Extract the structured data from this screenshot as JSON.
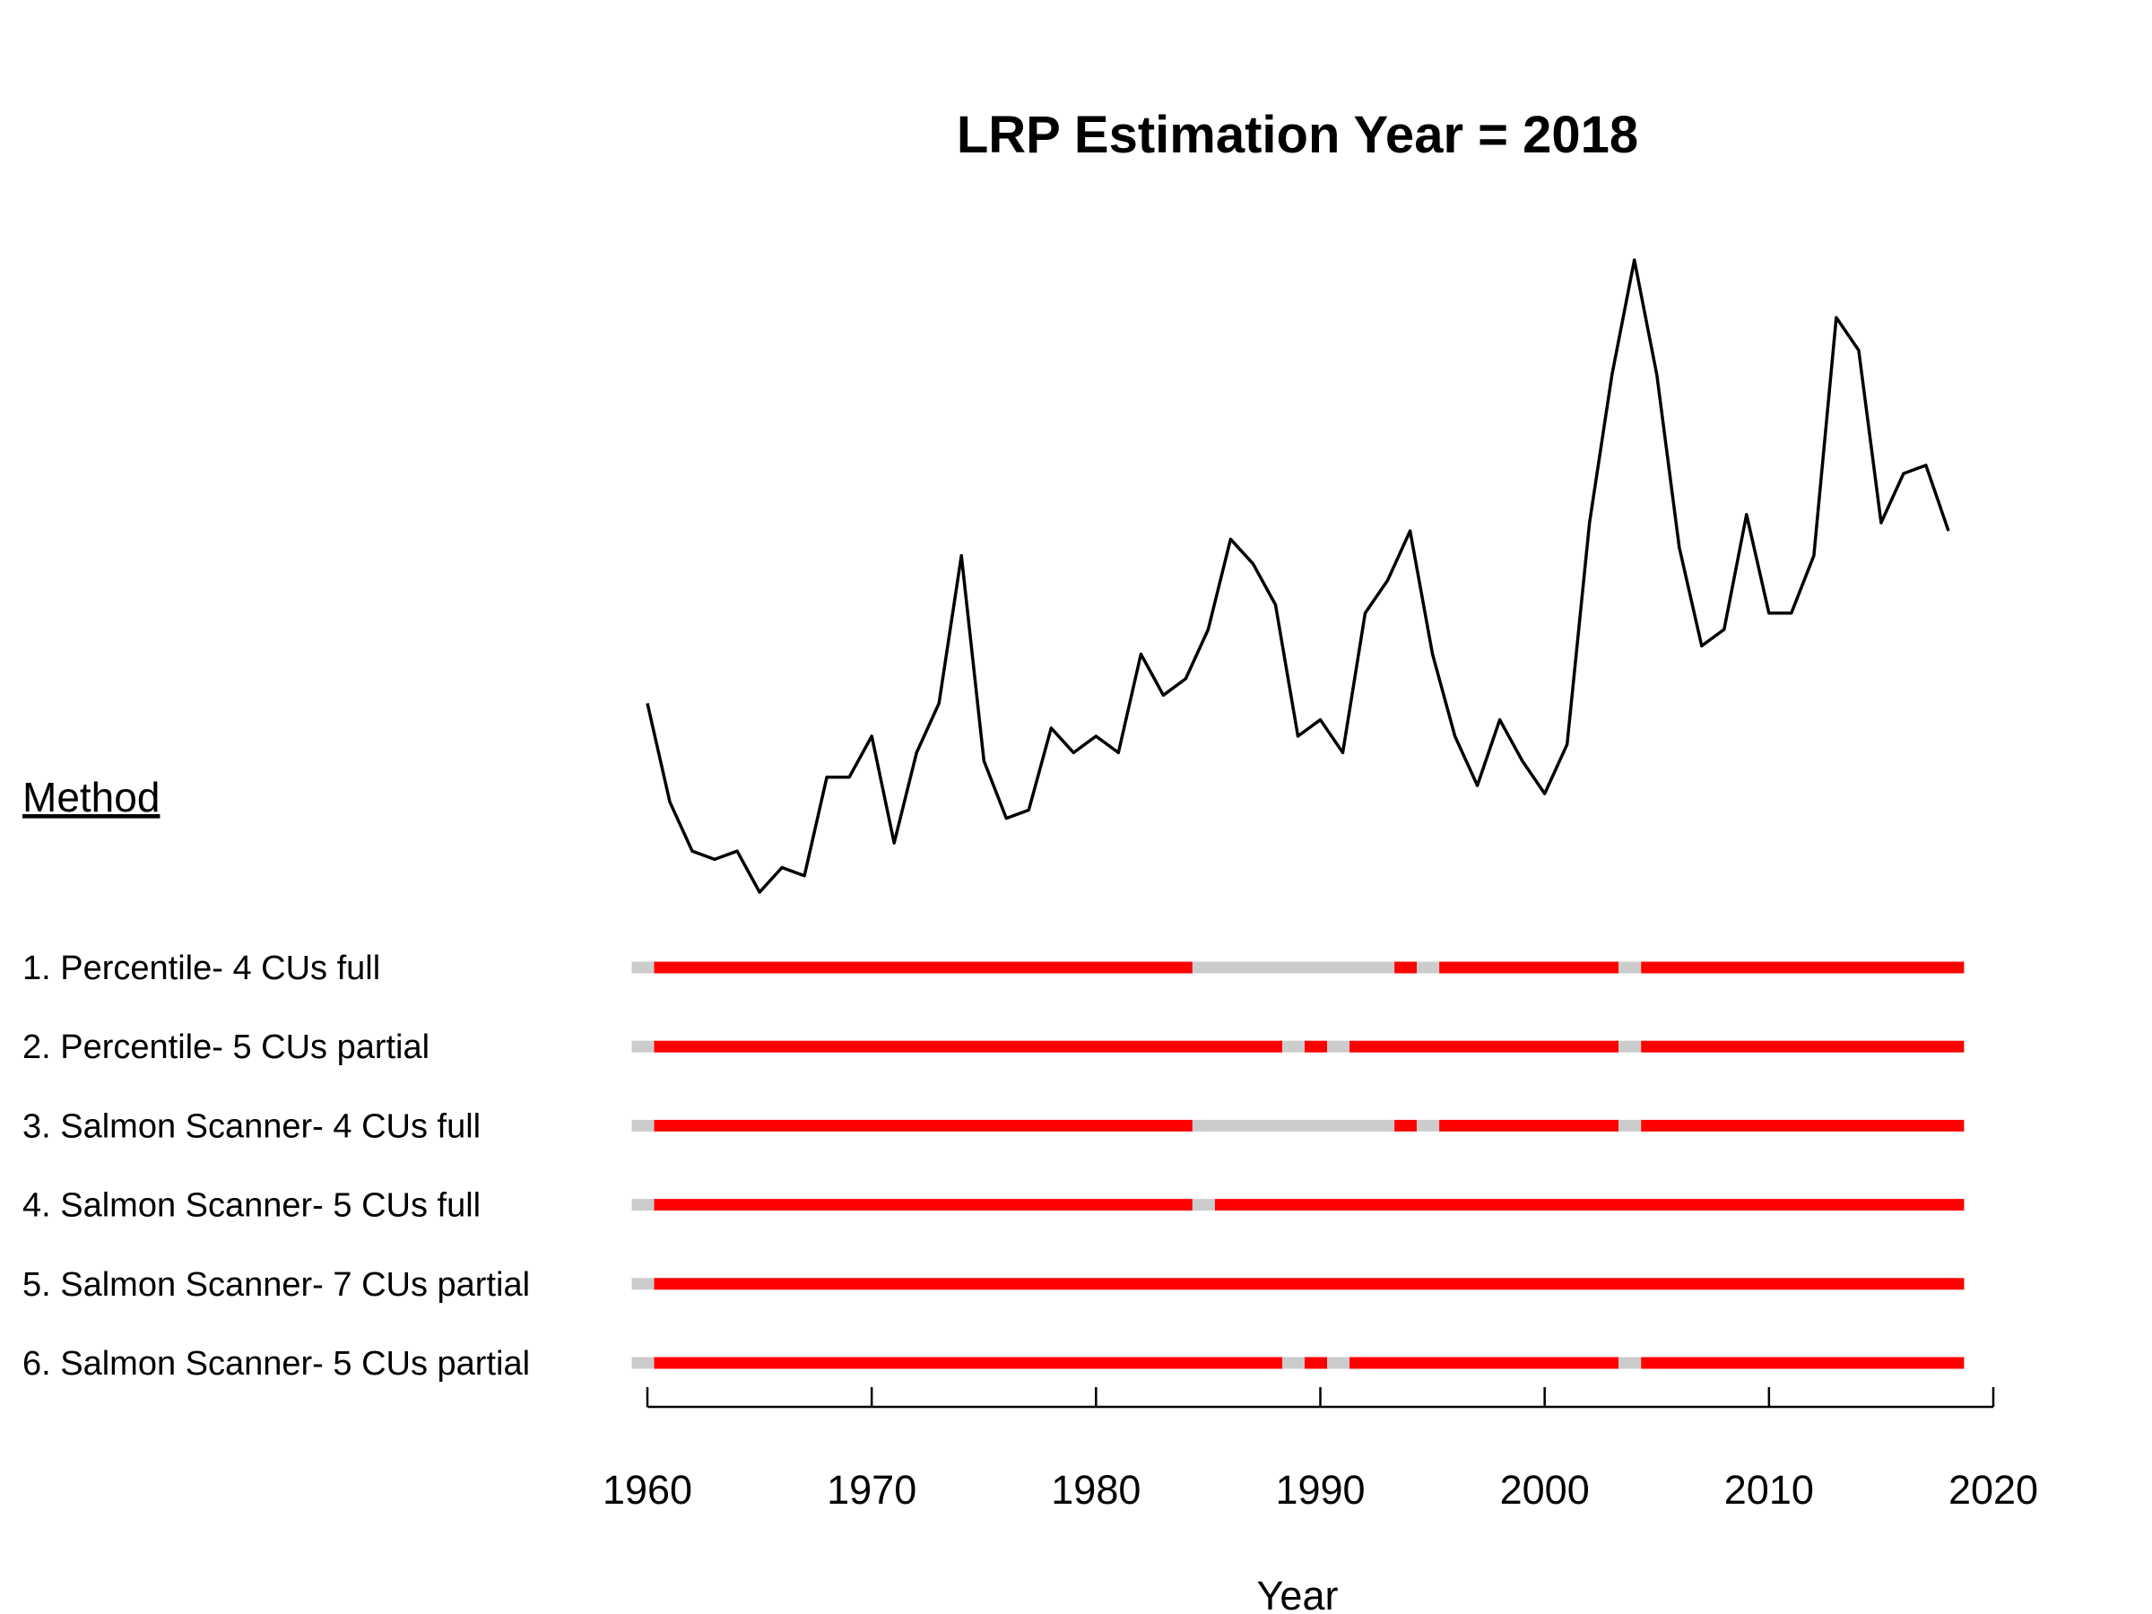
{
  "chart_data": {
    "type": "line",
    "title": "LRP Estimation Year = 2018",
    "xlabel": "Year",
    "ylabel": "",
    "xlim": [
      1960,
      2020
    ],
    "xticks": [
      1960,
      1970,
      1980,
      1990,
      2000,
      2010,
      2020
    ],
    "y_axis_shown": false,
    "grid": false,
    "series": [
      {
        "x": [
          1960,
          1961,
          1962,
          1963,
          1964,
          1965,
          1966,
          1967,
          1968,
          1969,
          1970,
          1971,
          1972,
          1973,
          1974,
          1975,
          1976,
          1977,
          1978,
          1979,
          1980,
          1981,
          1982,
          1983,
          1984,
          1985,
          1986,
          1987,
          1988,
          1989,
          1990,
          1991,
          1992,
          1993,
          1994,
          1995,
          1996,
          1997,
          1998,
          1999,
          2000,
          2001,
          2002,
          2003,
          2004,
          2005,
          2006,
          2007,
          2008,
          2009,
          2010,
          2011,
          2012,
          2013,
          2014,
          2015,
          2016,
          2017,
          2018
        ],
        "values": [
          59,
          47,
          41,
          40,
          41,
          36,
          39,
          38,
          50,
          50,
          55,
          42,
          53,
          59,
          77,
          52,
          45,
          46,
          56,
          53,
          55,
          53,
          65,
          60,
          62,
          68,
          79,
          76,
          71,
          55,
          57,
          53,
          70,
          74,
          80,
          65,
          55,
          49,
          57,
          52,
          48,
          54,
          81,
          99,
          113,
          99,
          78,
          66,
          68,
          82,
          70,
          70,
          77,
          106,
          102,
          81,
          87,
          88,
          80
        ],
        "color": "#000000"
      }
    ],
    "method_heading": "Method",
    "methods": [
      {
        "label": "1. Percentile- 4 CUs full",
        "segments": [
          {
            "start": 1959.3,
            "end": 1960.3,
            "status": "grey"
          },
          {
            "start": 1960.3,
            "end": 1984.3,
            "status": "red"
          },
          {
            "start": 1984.3,
            "end": 1993.3,
            "status": "grey"
          },
          {
            "start": 1993.3,
            "end": 1994.3,
            "status": "red"
          },
          {
            "start": 1994.3,
            "end": 1995.3,
            "status": "grey"
          },
          {
            "start": 1995.3,
            "end": 2003.3,
            "status": "red"
          },
          {
            "start": 2003.3,
            "end": 2004.3,
            "status": "grey"
          },
          {
            "start": 2004.3,
            "end": 2018.7,
            "status": "red"
          }
        ]
      },
      {
        "label": "2. Percentile- 5 CUs partial",
        "segments": [
          {
            "start": 1959.3,
            "end": 1960.3,
            "status": "grey"
          },
          {
            "start": 1960.3,
            "end": 1988.3,
            "status": "red"
          },
          {
            "start": 1988.3,
            "end": 1989.3,
            "status": "grey"
          },
          {
            "start": 1989.3,
            "end": 1990.3,
            "status": "red"
          },
          {
            "start": 1990.3,
            "end": 1991.3,
            "status": "grey"
          },
          {
            "start": 1991.3,
            "end": 2003.3,
            "status": "red"
          },
          {
            "start": 2003.3,
            "end": 2004.3,
            "status": "grey"
          },
          {
            "start": 2004.3,
            "end": 2018.7,
            "status": "red"
          }
        ]
      },
      {
        "label": "3. Salmon Scanner- 4 CUs full",
        "segments": [
          {
            "start": 1959.3,
            "end": 1960.3,
            "status": "grey"
          },
          {
            "start": 1960.3,
            "end": 1984.3,
            "status": "red"
          },
          {
            "start": 1984.3,
            "end": 1993.3,
            "status": "grey"
          },
          {
            "start": 1993.3,
            "end": 1994.3,
            "status": "red"
          },
          {
            "start": 1994.3,
            "end": 1995.3,
            "status": "grey"
          },
          {
            "start": 1995.3,
            "end": 2003.3,
            "status": "red"
          },
          {
            "start": 2003.3,
            "end": 2004.3,
            "status": "grey"
          },
          {
            "start": 2004.3,
            "end": 2018.7,
            "status": "red"
          }
        ]
      },
      {
        "label": "4. Salmon Scanner-  5 CUs full",
        "segments": [
          {
            "start": 1959.3,
            "end": 1960.3,
            "status": "grey"
          },
          {
            "start": 1960.3,
            "end": 1984.3,
            "status": "red"
          },
          {
            "start": 1984.3,
            "end": 1985.3,
            "status": "grey"
          },
          {
            "start": 1985.3,
            "end": 2018.7,
            "status": "red"
          }
        ]
      },
      {
        "label": "5. Salmon Scanner- 7 CUs partial",
        "segments": [
          {
            "start": 1959.3,
            "end": 1960.3,
            "status": "grey"
          },
          {
            "start": 1960.3,
            "end": 2018.7,
            "status": "red"
          }
        ]
      },
      {
        "label": "6. Salmon Scanner- 5 CUs partial",
        "segments": [
          {
            "start": 1959.3,
            "end": 1960.3,
            "status": "grey"
          },
          {
            "start": 1960.3,
            "end": 1988.3,
            "status": "red"
          },
          {
            "start": 1988.3,
            "end": 1989.3,
            "status": "grey"
          },
          {
            "start": 1989.3,
            "end": 1990.3,
            "status": "red"
          },
          {
            "start": 1990.3,
            "end": 1991.3,
            "status": "grey"
          },
          {
            "start": 1991.3,
            "end": 2003.3,
            "status": "red"
          },
          {
            "start": 2003.3,
            "end": 2004.3,
            "status": "grey"
          },
          {
            "start": 2004.3,
            "end": 2018.7,
            "status": "red"
          }
        ]
      }
    ],
    "status_colors": {
      "red": "#ff0000",
      "grey": "#cccccc"
    }
  }
}
